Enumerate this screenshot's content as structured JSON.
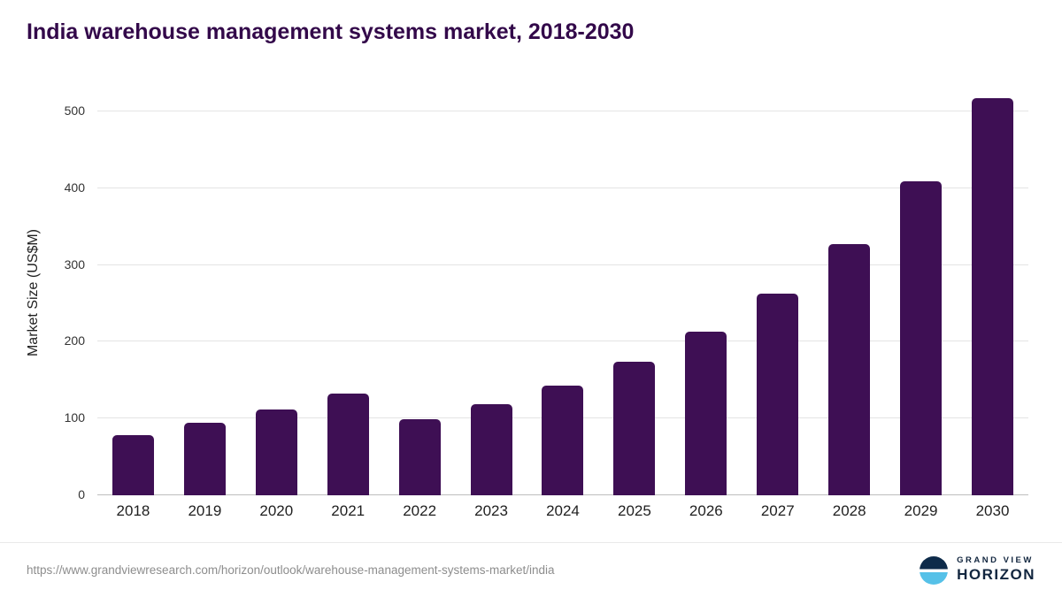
{
  "title": "India warehouse management systems market, 2018-2030",
  "source_url": "https://www.grandviewresearch.com/horizon/outlook/warehouse-management-systems-market/india",
  "brand": {
    "line1": "GRAND VIEW",
    "line2": "HORIZON"
  },
  "colors": {
    "bar": "#3e0f54",
    "title": "#33094a",
    "gridline": "#e4e4e4",
    "axis": "#bdbdbd"
  },
  "chart_data": {
    "type": "bar",
    "title": "India warehouse management systems market, 2018-2030",
    "categories": [
      "2018",
      "2019",
      "2020",
      "2021",
      "2022",
      "2023",
      "2024",
      "2025",
      "2026",
      "2027",
      "2028",
      "2029",
      "2030"
    ],
    "values": [
      78,
      95,
      112,
      133,
      99,
      119,
      143,
      174,
      213,
      263,
      327,
      409,
      517
    ],
    "xlabel": "",
    "ylabel": "Market Size (US$M)",
    "ylim": [
      0,
      530
    ],
    "yticks": [
      0,
      100,
      200,
      300,
      400,
      500
    ],
    "grid": "horizontal",
    "legend": "none",
    "bar_color": "#3e0f54"
  }
}
